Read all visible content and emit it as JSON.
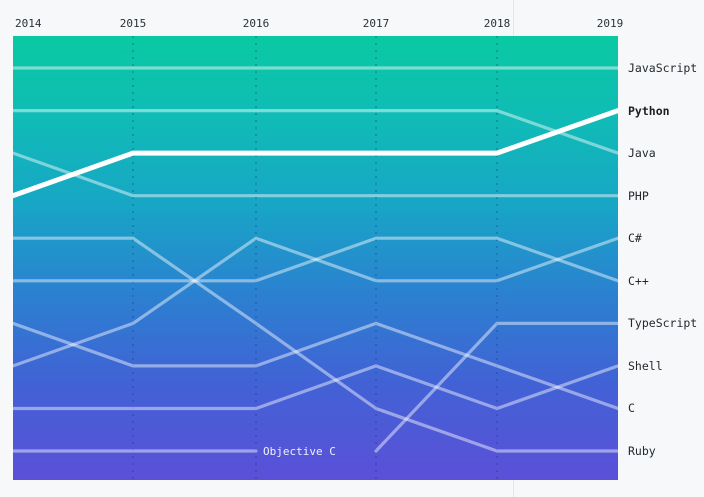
{
  "chart_data": {
    "type": "line",
    "subtype": "bump-rank-chart",
    "years": [
      "2014",
      "2015",
      "2016",
      "2017",
      "2018",
      "2019"
    ],
    "rank_axis": {
      "top_rank": 1,
      "bottom_rank": 10
    },
    "series": [
      {
        "name": "JavaScript",
        "ranks": [
          1,
          1,
          1,
          1,
          1,
          1
        ],
        "highlight": false
      },
      {
        "name": "Java",
        "ranks": [
          2,
          2,
          2,
          2,
          2,
          3
        ],
        "highlight": false
      },
      {
        "name": "PHP",
        "ranks": [
          3,
          4,
          4,
          4,
          4,
          4
        ],
        "highlight": false
      },
      {
        "name": "Python",
        "ranks": [
          4,
          3,
          3,
          3,
          3,
          2
        ],
        "highlight": true
      },
      {
        "name": "Ruby",
        "ranks": [
          5,
          5,
          7,
          9,
          10,
          10
        ],
        "highlight": false
      },
      {
        "name": "C++",
        "ranks": [
          6,
          6,
          6,
          5,
          5,
          6
        ],
        "highlight": false
      },
      {
        "name": "C",
        "ranks": [
          7,
          8,
          8,
          7,
          8,
          9
        ],
        "highlight": false
      },
      {
        "name": "C#",
        "ranks": [
          8,
          7,
          5,
          6,
          6,
          5
        ],
        "highlight": false
      },
      {
        "name": "Shell",
        "ranks": [
          9,
          9,
          9,
          8,
          9,
          8
        ],
        "highlight": false
      },
      {
        "name": "Objective C",
        "ranks": [
          10,
          10,
          10,
          null,
          null,
          null
        ],
        "highlight": false,
        "inline_label": true
      },
      {
        "name": "TypeScript",
        "ranks": [
          null,
          null,
          null,
          10,
          7,
          7
        ],
        "highlight": false
      }
    ],
    "right_labels": [
      "JavaScript",
      "Python",
      "Java",
      "PHP",
      "C#",
      "C++",
      "TypeScript",
      "Shell",
      "C",
      "Ruby"
    ],
    "inline_label_text": "Objective C",
    "legend_position": "right",
    "grid": "dashed-vertical-year-columns"
  },
  "colors": {
    "page_background": "#f6f8fa",
    "gradient_top": "#09c9a2",
    "gradient_mid": "#2b81d0",
    "gradient_bottom": "#5b50d8",
    "line": "rgba(255,255,255,0.45)",
    "highlight_line": "#ffffff",
    "dashed_gridline": "rgba(16,50,120,0.35)",
    "year_label_text": "#2b3137",
    "series_label_text": "#24292e",
    "divider": "#e3e6ea"
  }
}
